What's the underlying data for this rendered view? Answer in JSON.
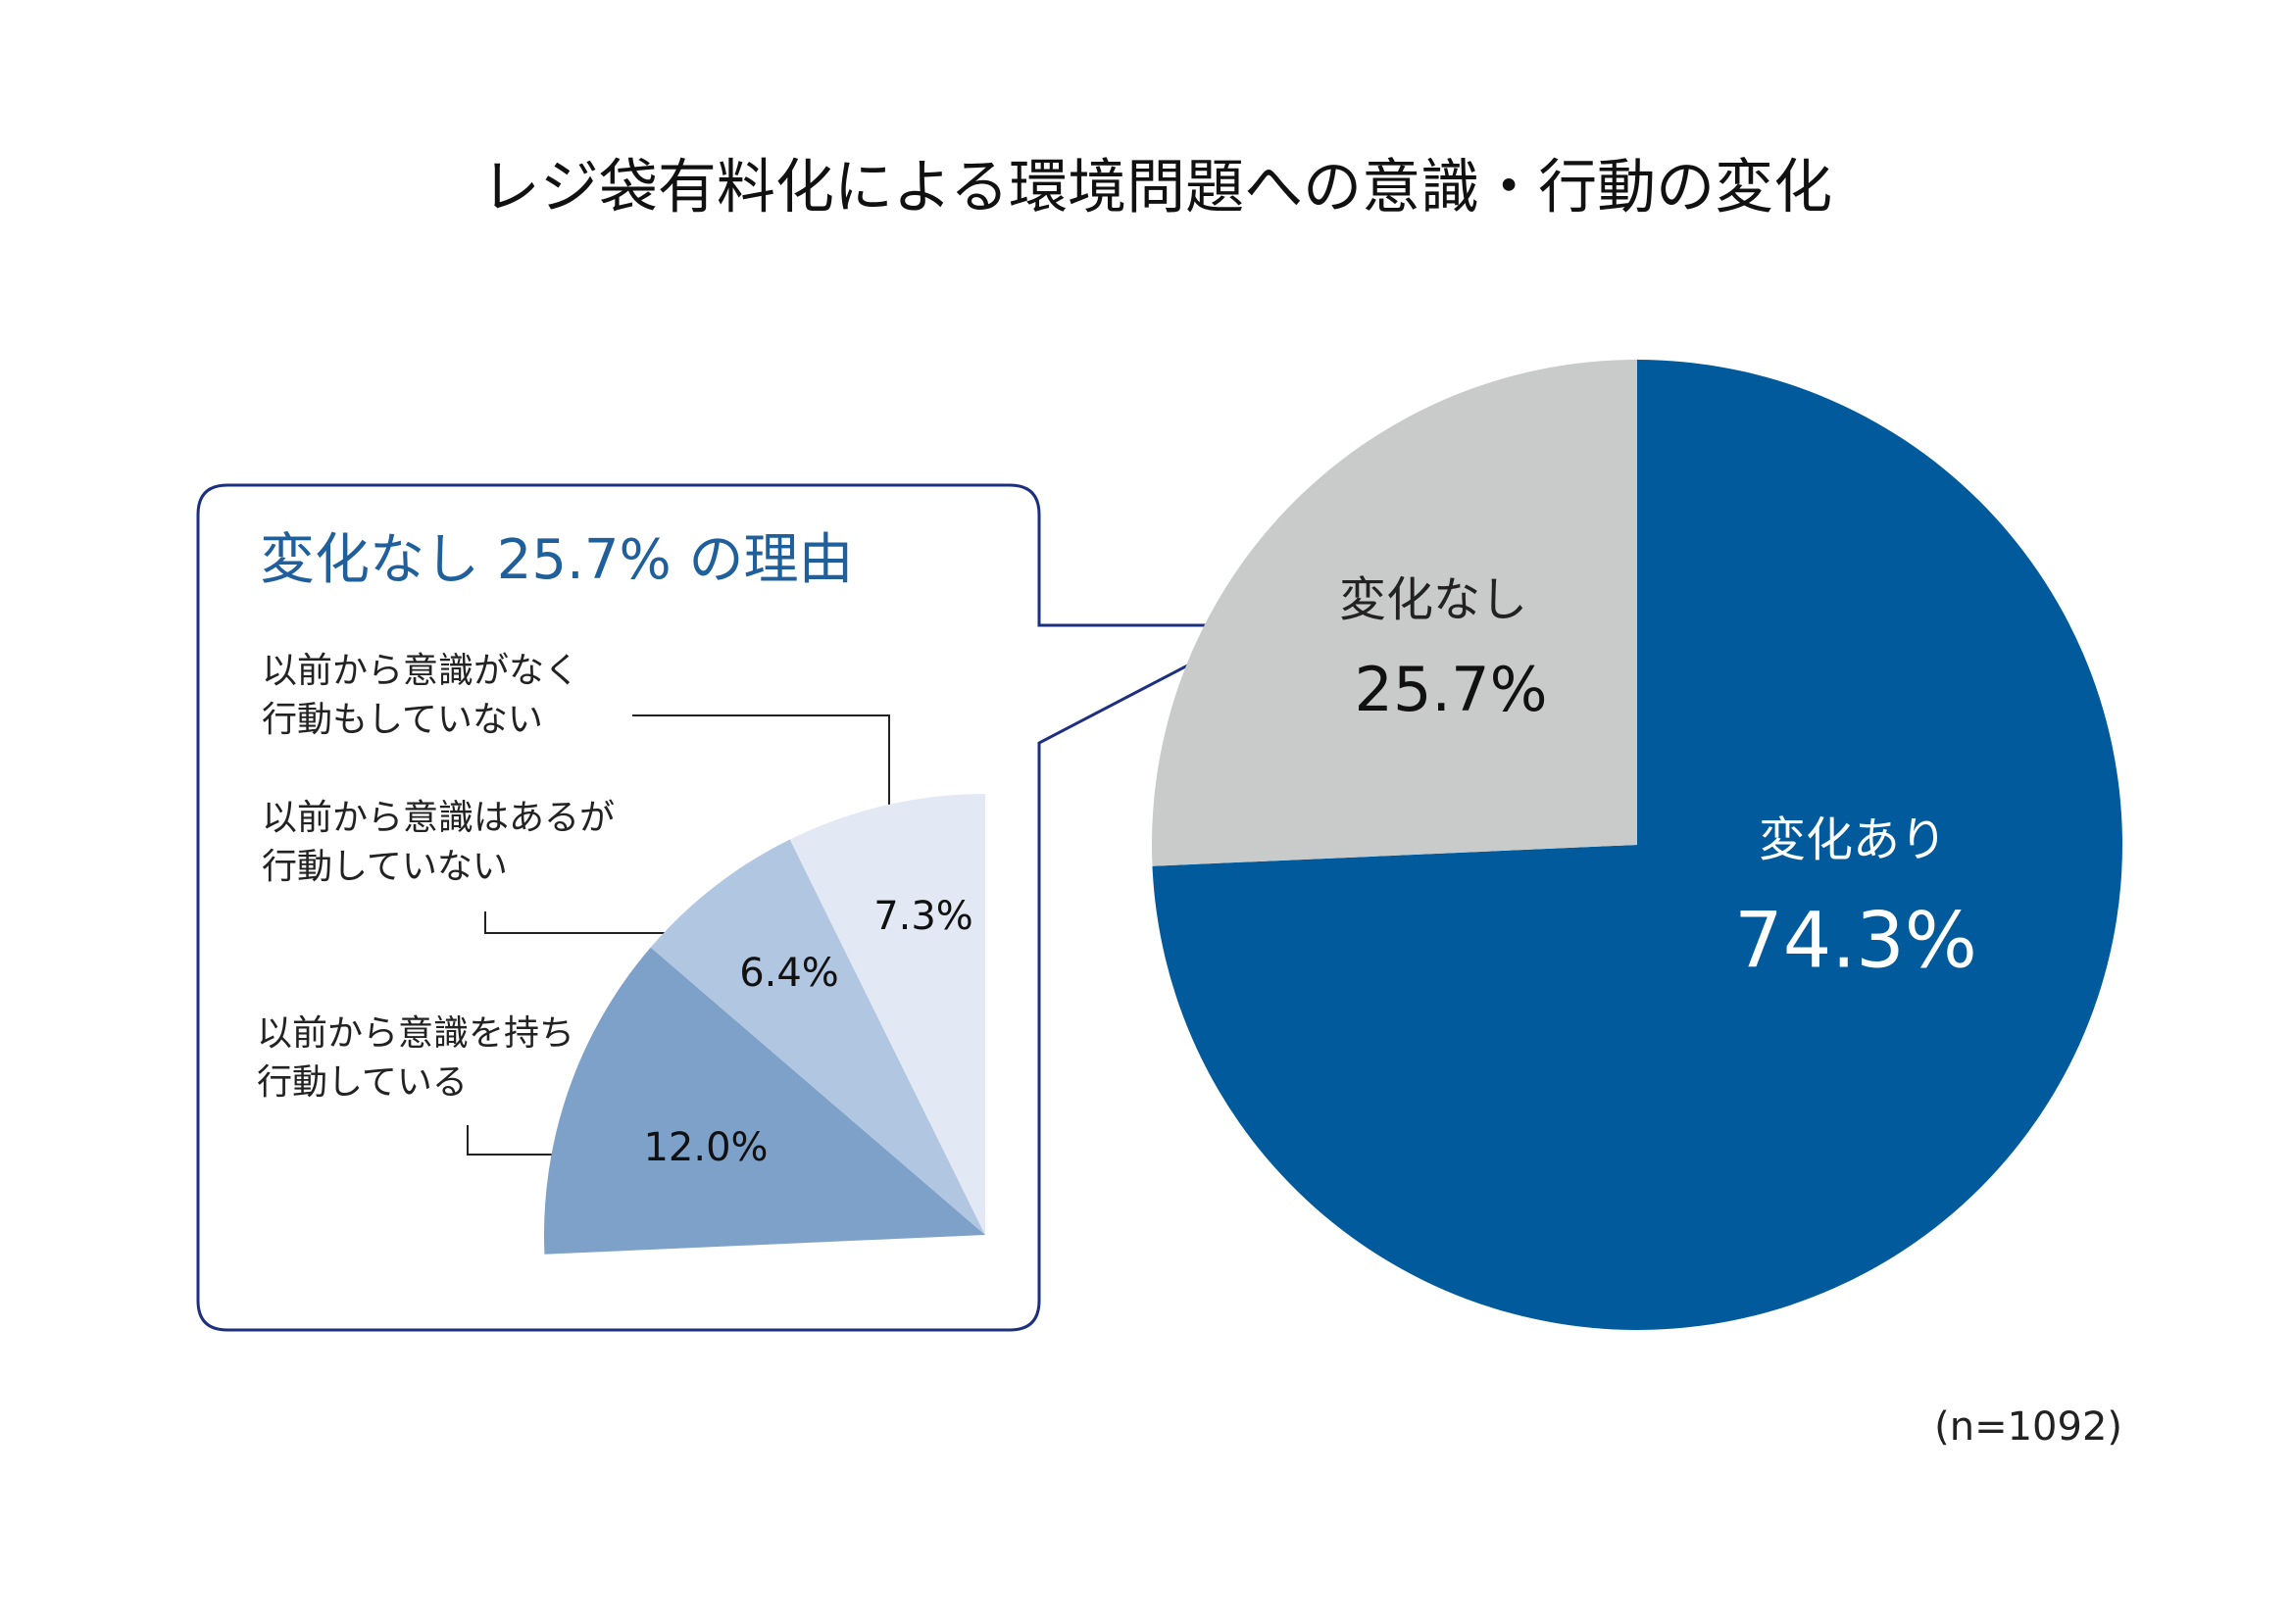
{
  "title": "レジ袋有料化による環境問題への意識・行動の変化",
  "note": "(n=1092)",
  "chart_data": [
    {
      "type": "pie",
      "categories": [
        "変化あり",
        "変化なし"
      ],
      "values": [
        74.3,
        25.7
      ],
      "value_labels": [
        "74.3%",
        "25.7%"
      ],
      "colors": [
        "#005a9c",
        "#c9caca"
      ]
    },
    {
      "type": "pie",
      "title": "変化なし 25.7% の理由",
      "categories": [
        "以前から意識を持ち\n行動している",
        "以前から意識はあるが\n行動していない",
        "以前から意識がなく\n行動もしていない"
      ],
      "values": [
        12.0,
        6.4,
        7.3
      ],
      "value_labels": [
        "12.0%",
        "6.4%",
        "7.3%"
      ],
      "colors": [
        "#7da1c9",
        "#b1c6e0",
        "#e3e9f4"
      ]
    }
  ]
}
